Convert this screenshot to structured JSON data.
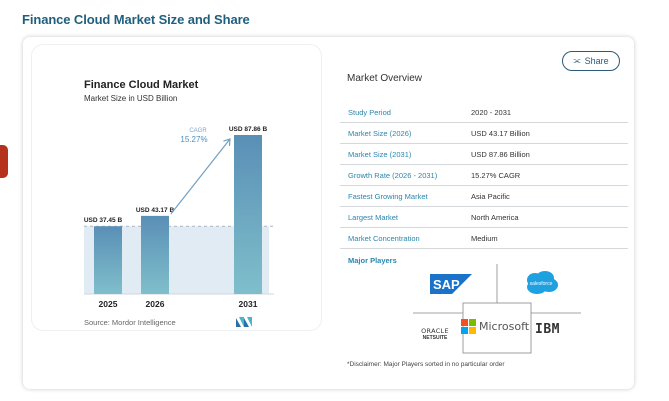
{
  "page": {
    "title": "Finance Cloud Market Size and Share"
  },
  "chart_card": {
    "title": "Finance Cloud Market",
    "subtitle": "Market Size in USD Billion",
    "source": "Source:  Mordor Intelligence",
    "logo": "mordor-intelligence-logo"
  },
  "chart_data": {
    "type": "bar",
    "title": "Finance Cloud Market",
    "subtitle": "Market Size in USD Billion",
    "categories": [
      "2025",
      "2026",
      "2031"
    ],
    "values": [
      37.45,
      43.17,
      87.86
    ],
    "data_labels": [
      "USD 37.45 B",
      "USD 43.17 B",
      "USD 87.86 B"
    ],
    "annotation": {
      "label": "CAGR",
      "value": "15.27%",
      "from": "2026",
      "to": "2031"
    },
    "xlabel": "",
    "ylabel": "",
    "ylim": [
      0,
      87.86
    ],
    "grid": false,
    "reference_line": {
      "value": 37.45,
      "style": "dashed"
    },
    "colors": {
      "bar_top": "#5a8fb6",
      "bar_bottom": "#7fbfcb",
      "shaded_area": "#e1ebf3",
      "arrow": "#6fa0c4"
    }
  },
  "overview": {
    "title": "Market Overview",
    "share_label": "Share",
    "rows": [
      {
        "label": "Study Period",
        "value": "2020 - 2031"
      },
      {
        "label": "Market Size (2026)",
        "value": "USD 43.17 Billion"
      },
      {
        "label": "Market Size (2031)",
        "value": "USD 87.86 Billion"
      },
      {
        "label": "Growth Rate (2026 - 2031)",
        "value": "15.27% CAGR"
      },
      {
        "label": "Fastest Growing Market",
        "value": "Asia Pacific"
      },
      {
        "label": "Largest Market",
        "value": "North America"
      },
      {
        "label": "Market Concentration",
        "value": "Medium"
      }
    ],
    "major_players_label": "Major Players",
    "players": {
      "sap": "SAP",
      "salesforce": "salesforce",
      "oracle": "ORACLE",
      "netsuite": "NETSUITE",
      "microsoft": "Microsoft",
      "ibm": "IBM"
    },
    "disclaimer": "*Disclaimer: Major Players sorted in no particular order"
  },
  "colors": {
    "title": "#1f5f7e",
    "accent_link": "#2a86ad",
    "side_tab": "#b5321c",
    "sap_blue": "#1a73c9",
    "salesforce_blue": "#1fa0e0",
    "ms_red": "#f25022",
    "ms_green": "#7fba00",
    "ms_blue": "#00a4ef",
    "ms_yellow": "#ffb900"
  }
}
